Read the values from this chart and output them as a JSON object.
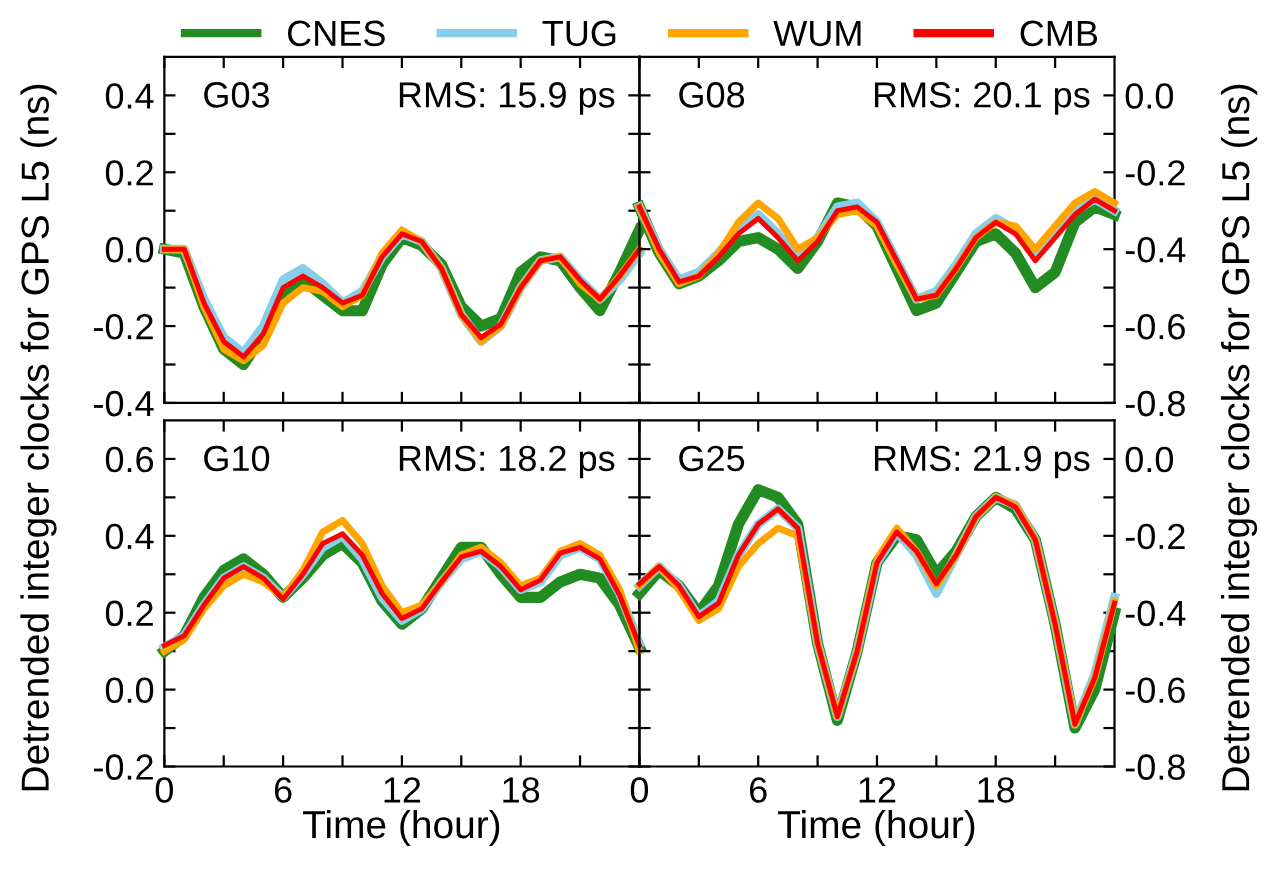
{
  "chart_data": [
    {
      "type": "line",
      "ylabel": "Detrended integer clocks for GPS L5 (ns)",
      "annotations": [
        "G03",
        "RMS: 15.9 ps"
      ],
      "legend": "top",
      "tick_labels": "y",
      "grid": false,
      "line_style": "solid",
      "x": [
        0,
        1,
        2,
        3,
        4,
        5,
        6,
        7,
        8,
        9,
        10,
        11,
        12,
        13,
        14,
        15,
        16,
        17,
        18,
        19,
        20,
        21,
        22,
        23,
        24
      ],
      "xlim": [
        0,
        24
      ],
      "xticks": [
        0,
        {
          "value": 3,
          "label": null
        },
        6,
        {
          "value": 9,
          "label": null
        },
        12,
        {
          "value": 15,
          "label": null
        },
        18,
        {
          "value": 21,
          "label": null
        }
      ],
      "ylim": [
        -0.4,
        0.5
      ],
      "yticks": [
        -0.4,
        {
          "value": -0.3,
          "label": null
        },
        -0.2,
        {
          "value": -0.1,
          "label": null
        },
        {
          "value": 0,
          "label": "0.0"
        },
        {
          "value": 0.1,
          "label": null
        },
        0.2,
        {
          "value": 0.3,
          "label": null
        },
        0.4
      ],
      "series": [
        {
          "name": "CNES",
          "color": "#228b22",
          "values": [
            0.0,
            -0.01,
            -0.15,
            -0.26,
            -0.3,
            -0.22,
            -0.11,
            -0.08,
            -0.12,
            -0.16,
            -0.16,
            -0.04,
            0.03,
            0.01,
            -0.04,
            -0.15,
            -0.2,
            -0.18,
            -0.06,
            -0.02,
            -0.03,
            -0.1,
            -0.16,
            -0.06,
            0.05
          ]
        },
        {
          "name": "TUG",
          "color": "#87ceeb",
          "values": [
            0.0,
            0.0,
            -0.13,
            -0.23,
            -0.27,
            -0.2,
            -0.08,
            -0.05,
            -0.09,
            -0.14,
            -0.11,
            -0.02,
            0.04,
            0.02,
            -0.05,
            -0.17,
            -0.24,
            -0.2,
            -0.1,
            -0.03,
            -0.02,
            -0.08,
            -0.13,
            -0.08,
            -0.01
          ]
        },
        {
          "name": "WUM",
          "color": "#ffa500",
          "values": [
            0.0,
            0.0,
            -0.15,
            -0.26,
            -0.29,
            -0.25,
            -0.14,
            -0.1,
            -0.11,
            -0.15,
            -0.12,
            -0.01,
            0.05,
            0.02,
            -0.05,
            -0.17,
            -0.24,
            -0.2,
            -0.1,
            -0.03,
            -0.02,
            -0.09,
            -0.13,
            -0.07,
            0.0
          ]
        },
        {
          "name": "CMB",
          "color": "#ff0000",
          "values": [
            0.0,
            0.0,
            -0.14,
            -0.24,
            -0.28,
            -0.22,
            -0.1,
            -0.07,
            -0.1,
            -0.14,
            -0.12,
            -0.02,
            0.04,
            0.02,
            -0.05,
            -0.17,
            -0.23,
            -0.195,
            -0.1,
            -0.03,
            -0.02,
            -0.08,
            -0.13,
            -0.07,
            0.0
          ]
        }
      ]
    },
    {
      "type": "line",
      "y2label": "Detrended integer clocks for GPS L5 (ns)",
      "annotations": [
        "G08",
        "RMS: 20.1 ps"
      ],
      "tick_labels": "y",
      "grid": false,
      "line_style": "solid",
      "x": [
        0,
        1,
        2,
        3,
        4,
        5,
        6,
        7,
        8,
        9,
        10,
        11,
        12,
        13,
        14,
        15,
        16,
        17,
        18,
        19,
        20,
        21,
        22,
        23,
        24
      ],
      "xlim": [
        0,
        24
      ],
      "xticks": [
        0,
        {
          "value": 3,
          "label": null
        },
        6,
        {
          "value": 9,
          "label": null
        },
        12,
        {
          "value": 15,
          "label": null
        },
        18,
        {
          "value": 21,
          "label": null
        }
      ],
      "y2lim": [
        -0.8,
        0.1
      ],
      "y2ticks": [
        -0.8,
        {
          "value": -0.7,
          "label": null
        },
        -0.6,
        {
          "value": -0.5,
          "label": null
        },
        -0.4,
        {
          "value": -0.3,
          "label": null
        },
        -0.2,
        {
          "value": -0.1,
          "label": null
        },
        {
          "value": 0,
          "label": "0.0"
        }
      ],
      "series": [
        {
          "axis": "y2",
          "color": "#228b22",
          "values": [
            -0.29,
            -0.41,
            -0.49,
            -0.47,
            -0.43,
            -0.38,
            -0.37,
            -0.4,
            -0.45,
            -0.38,
            -0.28,
            -0.29,
            -0.34,
            -0.45,
            -0.56,
            -0.54,
            -0.46,
            -0.38,
            -0.36,
            -0.41,
            -0.5,
            -0.46,
            -0.33,
            -0.29,
            -0.31
          ]
        },
        {
          "axis": "y2",
          "color": "#87ceeb",
          "values": [
            -0.29,
            -0.4,
            -0.48,
            -0.46,
            -0.41,
            -0.35,
            -0.31,
            -0.36,
            -0.42,
            -0.37,
            -0.29,
            -0.28,
            -0.33,
            -0.43,
            -0.53,
            -0.51,
            -0.44,
            -0.36,
            -0.32,
            -0.35,
            -0.42,
            -0.36,
            -0.3,
            -0.27,
            -0.3
          ]
        },
        {
          "axis": "y2",
          "color": "#ffa500",
          "values": [
            -0.29,
            -0.41,
            -0.49,
            -0.47,
            -0.41,
            -0.33,
            -0.28,
            -0.32,
            -0.4,
            -0.37,
            -0.31,
            -0.3,
            -0.34,
            -0.44,
            -0.53,
            -0.52,
            -0.45,
            -0.37,
            -0.33,
            -0.34,
            -0.4,
            -0.34,
            -0.28,
            -0.25,
            -0.28
          ]
        },
        {
          "axis": "y2",
          "color": "#ff0000",
          "values": [
            -0.29,
            -0.4,
            -0.485,
            -0.47,
            -0.42,
            -0.36,
            -0.32,
            -0.37,
            -0.43,
            -0.38,
            -0.3,
            -0.29,
            -0.33,
            -0.43,
            -0.53,
            -0.52,
            -0.45,
            -0.37,
            -0.33,
            -0.36,
            -0.43,
            -0.37,
            -0.31,
            -0.27,
            -0.3
          ]
        }
      ]
    },
    {
      "type": "line",
      "xlabel": "Time (hour)",
      "annotations": [
        "G10",
        "RMS: 18.2 ps"
      ],
      "grid": false,
      "line_style": "solid",
      "x": [
        0,
        1,
        2,
        3,
        4,
        5,
        6,
        7,
        8,
        9,
        10,
        11,
        12,
        13,
        14,
        15,
        16,
        17,
        18,
        19,
        20,
        21,
        22,
        23,
        24
      ],
      "xlim": [
        0,
        24
      ],
      "xticks": [
        0,
        {
          "value": 3,
          "label": null
        },
        6,
        {
          "value": 9,
          "label": null
        },
        12,
        {
          "value": 15,
          "label": null
        },
        18,
        {
          "value": 21,
          "label": null
        }
      ],
      "ylim": [
        -0.2,
        0.7
      ],
      "yticks": [
        -0.2,
        {
          "value": -0.1,
          "label": null
        },
        {
          "value": 0,
          "label": "0.0"
        },
        {
          "value": 0.1,
          "label": null
        },
        0.2,
        {
          "value": 0.3,
          "label": null
        },
        0.4,
        {
          "value": 0.5,
          "label": null
        },
        0.6
      ],
      "series": [
        {
          "color": "#228b22",
          "values": [
            0.1,
            0.14,
            0.24,
            0.31,
            0.34,
            0.3,
            0.24,
            0.29,
            0.35,
            0.38,
            0.33,
            0.23,
            0.17,
            0.21,
            0.29,
            0.37,
            0.37,
            0.3,
            0.24,
            0.24,
            0.28,
            0.3,
            0.29,
            0.22,
            0.11
          ]
        },
        {
          "color": "#87ceeb",
          "values": [
            0.11,
            0.14,
            0.22,
            0.29,
            0.32,
            0.29,
            0.24,
            0.3,
            0.37,
            0.4,
            0.34,
            0.24,
            0.18,
            0.21,
            0.28,
            0.34,
            0.36,
            0.32,
            0.26,
            0.28,
            0.35,
            0.37,
            0.34,
            0.25,
            0.12
          ]
        },
        {
          "color": "#ffa500",
          "values": [
            0.1,
            0.13,
            0.21,
            0.27,
            0.3,
            0.28,
            0.24,
            0.31,
            0.41,
            0.44,
            0.38,
            0.27,
            0.2,
            0.22,
            0.28,
            0.35,
            0.37,
            0.33,
            0.27,
            0.29,
            0.36,
            0.38,
            0.35,
            0.26,
            0.1
          ]
        },
        {
          "color": "#ff0000",
          "values": [
            0.115,
            0.14,
            0.22,
            0.29,
            0.32,
            0.29,
            0.235,
            0.3,
            0.38,
            0.405,
            0.35,
            0.25,
            0.185,
            0.21,
            0.28,
            0.345,
            0.36,
            0.32,
            0.26,
            0.285,
            0.355,
            0.37,
            0.34,
            0.245,
            0.115
          ]
        }
      ]
    },
    {
      "type": "line",
      "xlabel": "Time (hour)",
      "annotations": [
        "G25",
        "RMS: 21.9 ps"
      ],
      "grid": false,
      "line_style": "solid",
      "x": [
        0,
        1,
        2,
        3,
        4,
        5,
        6,
        7,
        8,
        9,
        10,
        11,
        12,
        13,
        14,
        15,
        16,
        17,
        18,
        19,
        20,
        21,
        22,
        23,
        24
      ],
      "xlim": [
        0,
        24
      ],
      "xticks": [
        0,
        {
          "value": 3,
          "label": null
        },
        6,
        {
          "value": 9,
          "label": null
        },
        12,
        {
          "value": 15,
          "label": null
        },
        18,
        {
          "value": 21,
          "label": null
        }
      ],
      "y2lim": [
        -0.8,
        0.1
      ],
      "y2ticks": [
        -0.8,
        {
          "value": -0.7,
          "label": null
        },
        -0.6,
        {
          "value": -0.5,
          "label": null
        },
        -0.4,
        {
          "value": -0.3,
          "label": null
        },
        -0.2,
        {
          "value": -0.1,
          "label": null
        },
        {
          "value": 0,
          "label": "0.0"
        }
      ],
      "series": [
        {
          "axis": "y2",
          "color": "#228b22",
          "values": [
            -0.35,
            -0.29,
            -0.33,
            -0.4,
            -0.33,
            -0.17,
            -0.08,
            -0.1,
            -0.17,
            -0.48,
            -0.68,
            -0.5,
            -0.27,
            -0.2,
            -0.21,
            -0.3,
            -0.24,
            -0.15,
            -0.1,
            -0.13,
            -0.21,
            -0.43,
            -0.7,
            -0.6,
            -0.4
          ]
        },
        {
          "axis": "y2",
          "color": "#87ceeb",
          "values": [
            -0.33,
            -0.28,
            -0.33,
            -0.41,
            -0.37,
            -0.25,
            -0.17,
            -0.13,
            -0.18,
            -0.48,
            -0.67,
            -0.5,
            -0.27,
            -0.19,
            -0.25,
            -0.35,
            -0.25,
            -0.15,
            -0.1,
            -0.12,
            -0.21,
            -0.43,
            -0.69,
            -0.56,
            -0.36
          ]
        },
        {
          "axis": "y2",
          "color": "#ffa500",
          "values": [
            -0.33,
            -0.28,
            -0.34,
            -0.42,
            -0.39,
            -0.28,
            -0.22,
            -0.18,
            -0.2,
            -0.48,
            -0.67,
            -0.5,
            -0.26,
            -0.18,
            -0.24,
            -0.33,
            -0.25,
            -0.15,
            -0.1,
            -0.12,
            -0.21,
            -0.43,
            -0.69,
            -0.57,
            -0.37
          ]
        },
        {
          "axis": "y2",
          "color": "#ff0000",
          "values": [
            -0.325,
            -0.28,
            -0.33,
            -0.41,
            -0.375,
            -0.25,
            -0.17,
            -0.13,
            -0.18,
            -0.48,
            -0.67,
            -0.5,
            -0.27,
            -0.19,
            -0.24,
            -0.325,
            -0.25,
            -0.15,
            -0.1,
            -0.125,
            -0.21,
            -0.43,
            -0.69,
            -0.57,
            -0.375
          ]
        }
      ]
    }
  ]
}
